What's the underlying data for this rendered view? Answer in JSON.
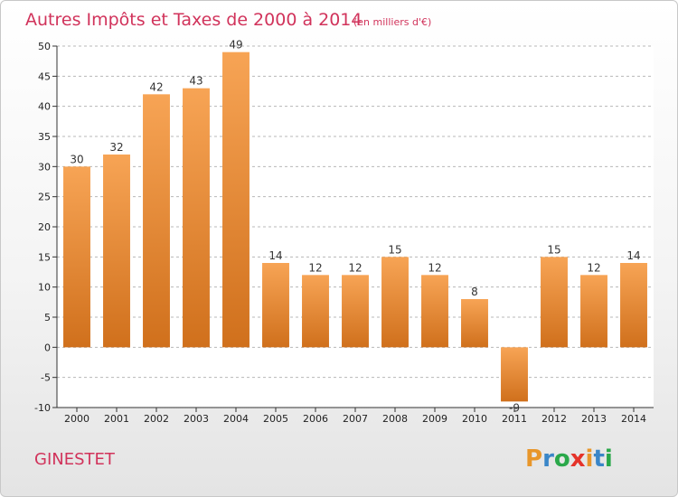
{
  "header": {
    "title": "Autres Impôts et Taxes de 2000 à 2014",
    "subtitle": "(en milliers d'€)"
  },
  "footer": {
    "commune": "GINESTET",
    "logo": "Proxiti"
  },
  "colors": {
    "bar_light": "#f7a455",
    "bar_dark": "#d0701c",
    "title": "#d1335b",
    "grid": "#b8b8b8",
    "plot_bg": "#ffffff",
    "logo_letters": [
      "#e8962a",
      "#3a86c8",
      "#2aa84a",
      "#e5332a",
      "#e8962a",
      "#3a86c8",
      "#2aa84a"
    ]
  },
  "chart_data": {
    "type": "bar",
    "categories": [
      "2000",
      "2001",
      "2002",
      "2003",
      "2004",
      "2005",
      "2006",
      "2007",
      "2008",
      "2009",
      "2010",
      "2011",
      "2012",
      "2013",
      "2014"
    ],
    "values": [
      30,
      32,
      42,
      43,
      49,
      14,
      12,
      12,
      15,
      12,
      8,
      -9,
      15,
      12,
      14
    ],
    "ylim": [
      -10,
      50
    ],
    "yticks": [
      -10,
      -5,
      0,
      5,
      10,
      15,
      20,
      25,
      30,
      35,
      40,
      45,
      50
    ],
    "grid": true,
    "grid_style": "dashed horizontal",
    "legend": "none"
  }
}
